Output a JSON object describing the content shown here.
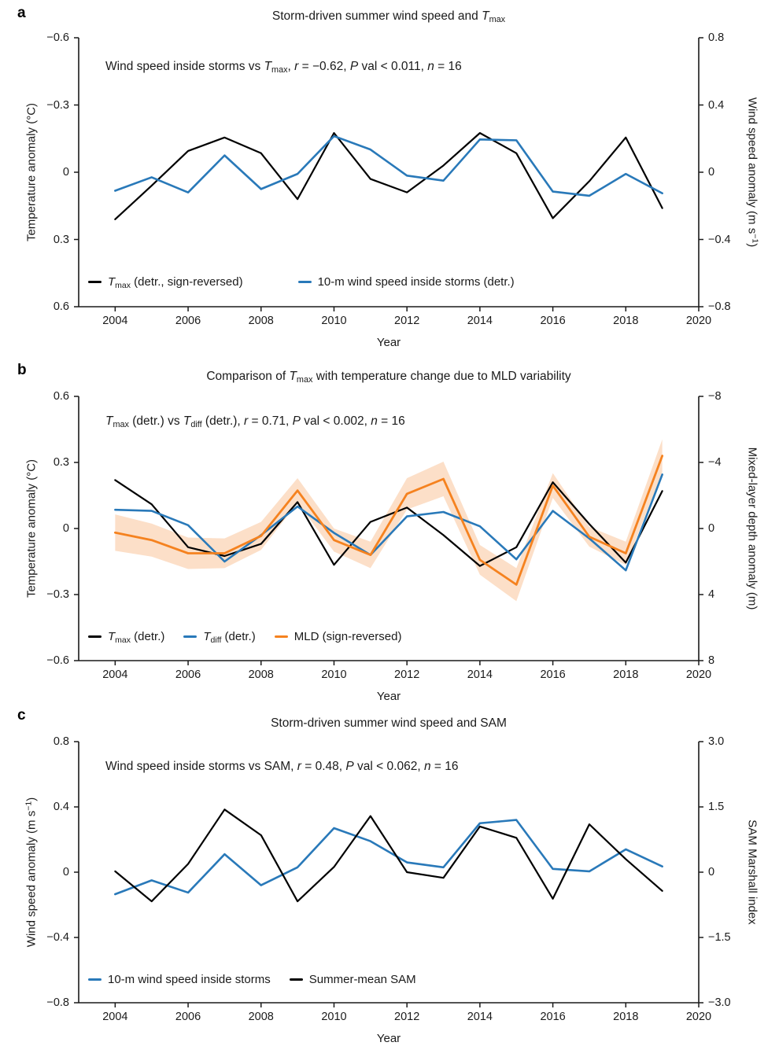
{
  "figure": {
    "background": "#ffffff",
    "axis_color": "#1a1a1a",
    "text_color": "#1a1a1a"
  },
  "chart_data": [
    {
      "letter": "a",
      "type": "line",
      "title": [
        {
          "t": "Storm-driven summer wind speed and "
        },
        {
          "t": "T",
          "i": 1
        },
        {
          "t": "max",
          "sub": 1
        }
      ],
      "annotation": [
        {
          "t": "Wind speed inside storms vs "
        },
        {
          "t": "T",
          "i": 1
        },
        {
          "t": "max",
          "sub": 1
        },
        {
          "t": ", "
        },
        {
          "t": "r",
          "i": 1
        },
        {
          "t": " = −0.62, "
        },
        {
          "t": "P",
          "i": 1
        },
        {
          "t": " val < 0.011, "
        },
        {
          "t": "n",
          "i": 1
        },
        {
          "t": " = 16"
        }
      ],
      "xlabel": "Year",
      "x_range": [
        2003,
        2020
      ],
      "x_ticks": [
        {
          "v": 2004,
          "label": "2004"
        },
        {
          "v": 2006,
          "label": "2006"
        },
        {
          "v": 2008,
          "label": "2008"
        },
        {
          "v": 2010,
          "label": "2010"
        },
        {
          "v": 2012,
          "label": "2012"
        },
        {
          "v": 2014,
          "label": "2014"
        },
        {
          "v": 2016,
          "label": "2016"
        },
        {
          "v": 2018,
          "label": "2018"
        },
        {
          "v": 2020,
          "label": "2020"
        }
      ],
      "left_axis": {
        "label": [
          {
            "t": "Temperature anomaly (°C)"
          }
        ],
        "range": [
          -0.6,
          0.6
        ],
        "inverted": true,
        "ticks": [
          {
            "v": -0.6,
            "label": "−0.6"
          },
          {
            "v": -0.3,
            "label": "−0.3"
          },
          {
            "v": 0,
            "label": "0"
          },
          {
            "v": 0.3,
            "label": "0.3"
          },
          {
            "v": 0.6,
            "label": "0.6"
          }
        ]
      },
      "right_axis": {
        "label": [
          {
            "t": "Wind speed anomaly (m s"
          },
          {
            "t": "−1",
            "sup": 1
          },
          {
            "t": ")"
          }
        ],
        "range": [
          -0.8,
          0.8
        ],
        "inverted": false,
        "ticks": [
          {
            "v": 0.8,
            "label": "0.8"
          },
          {
            "v": 0.4,
            "label": "0.4"
          },
          {
            "v": 0,
            "label": "0"
          },
          {
            "v": -0.4,
            "label": "−0.4"
          },
          {
            "v": -0.8,
            "label": "−0.8"
          }
        ]
      },
      "x": [
        2004,
        2005,
        2006,
        2007,
        2008,
        2009,
        2010,
        2011,
        2012,
        2013,
        2014,
        2015,
        2016,
        2017,
        2018,
        2019
      ],
      "series": [
        {
          "name": [
            {
              "t": "T",
              "i": 1
            },
            {
              "t": "max",
              "sub": 1
            },
            {
              "t": " (detr., sign-reversed)"
            }
          ],
          "color": "#000000",
          "axis": "left",
          "values": [
            0.21,
            0.06,
            -0.095,
            -0.155,
            -0.085,
            0.12,
            -0.175,
            0.03,
            0.09,
            -0.03,
            -0.175,
            -0.085,
            0.205,
            0.04,
            -0.155,
            0.16
          ]
        },
        {
          "name": [
            {
              "t": "10-m wind speed inside storms (detr.)"
            }
          ],
          "color": "#2979b9",
          "axis": "right",
          "values": [
            -0.11,
            -0.03,
            -0.12,
            0.1,
            -0.1,
            -0.01,
            0.215,
            0.135,
            -0.02,
            -0.05,
            0.195,
            0.19,
            -0.115,
            -0.14,
            -0.01,
            -0.125
          ]
        }
      ]
    },
    {
      "letter": "b",
      "type": "line",
      "title": [
        {
          "t": "Comparison of "
        },
        {
          "t": "T",
          "i": 1
        },
        {
          "t": "max",
          "sub": 1
        },
        {
          "t": " with temperature change due to MLD variability"
        }
      ],
      "annotation": [
        {
          "t": "T",
          "i": 1
        },
        {
          "t": "max",
          "sub": 1
        },
        {
          "t": " (detr.) vs "
        },
        {
          "t": "T",
          "i": 1
        },
        {
          "t": "diff",
          "sub": 1
        },
        {
          "t": " (detr.), "
        },
        {
          "t": "r",
          "i": 1
        },
        {
          "t": " = 0.71, "
        },
        {
          "t": "P",
          "i": 1
        },
        {
          "t": " val < 0.002, "
        },
        {
          "t": "n",
          "i": 1
        },
        {
          "t": " = 16"
        }
      ],
      "xlabel": "Year",
      "x_range": [
        2003,
        2020
      ],
      "x_ticks": [
        {
          "v": 2004,
          "label": "2004"
        },
        {
          "v": 2006,
          "label": "2006"
        },
        {
          "v": 2008,
          "label": "2008"
        },
        {
          "v": 2010,
          "label": "2010"
        },
        {
          "v": 2012,
          "label": "2012"
        },
        {
          "v": 2014,
          "label": "2014"
        },
        {
          "v": 2016,
          "label": "2016"
        },
        {
          "v": 2018,
          "label": "2018"
        },
        {
          "v": 2020,
          "label": "2020"
        }
      ],
      "left_axis": {
        "label": [
          {
            "t": "Temperature anomaly (°C)"
          }
        ],
        "range": [
          -0.6,
          0.6
        ],
        "inverted": false,
        "ticks": [
          {
            "v": 0.6,
            "label": "0.6"
          },
          {
            "v": 0.3,
            "label": "0.3"
          },
          {
            "v": 0,
            "label": "0"
          },
          {
            "v": -0.3,
            "label": "−0.3"
          },
          {
            "v": -0.6,
            "label": "−0.6"
          }
        ]
      },
      "right_axis": {
        "label": [
          {
            "t": "Mixed-layer depth anomaly (m)"
          }
        ],
        "range": [
          -8,
          8
        ],
        "inverted": true,
        "ticks": [
          {
            "v": -8,
            "label": "−8"
          },
          {
            "v": -4,
            "label": "−4"
          },
          {
            "v": 0,
            "label": "0"
          },
          {
            "v": 4,
            "label": "4"
          },
          {
            "v": 8,
            "label": "8"
          }
        ]
      },
      "x": [
        2004,
        2005,
        2006,
        2007,
        2008,
        2009,
        2010,
        2011,
        2012,
        2013,
        2014,
        2015,
        2016,
        2017,
        2018,
        2019
      ],
      "series": [
        {
          "name": [
            {
              "t": "T",
              "i": 1
            },
            {
              "t": "max",
              "sub": 1
            },
            {
              "t": " (detr.)"
            }
          ],
          "color": "#000000",
          "axis": "left",
          "values": [
            0.22,
            0.11,
            -0.085,
            -0.125,
            -0.07,
            0.12,
            -0.165,
            0.03,
            0.095,
            -0.03,
            -0.17,
            -0.085,
            0.21,
            0.02,
            -0.155,
            0.17
          ]
        },
        {
          "name": [
            {
              "t": "T",
              "i": 1
            },
            {
              "t": "diff",
              "sub": 1
            },
            {
              "t": " (detr.)"
            }
          ],
          "color": "#2979b9",
          "axis": "left",
          "values": [
            0.085,
            0.08,
            0.015,
            -0.15,
            -0.03,
            0.1,
            -0.02,
            -0.12,
            0.055,
            0.075,
            0.01,
            -0.14,
            0.08,
            -0.045,
            -0.19,
            0.245
          ]
        },
        {
          "name": [
            {
              "t": "MLD (sign-reversed)"
            }
          ],
          "color": "#f5821f",
          "axis": "right",
          "values": [
            0.25,
            0.7,
            1.5,
            1.5,
            0.45,
            -2.3,
            0.7,
            1.6,
            -2.1,
            -3.0,
            1.9,
            3.4,
            -2.6,
            0.5,
            1.5,
            -4.4
          ],
          "band_color": "#fcdfc8",
          "band_upper": [
            -0.85,
            -0.3,
            0.55,
            0.6,
            -0.4,
            -3.05,
            0.0,
            0.8,
            -3.05,
            -4.05,
            1.0,
            2.4,
            -3.35,
            -0.1,
            0.8,
            -5.4
          ],
          "band_lower": [
            1.35,
            1.7,
            2.45,
            2.4,
            1.3,
            -1.55,
            1.4,
            2.4,
            -1.15,
            -1.95,
            2.8,
            4.4,
            -1.85,
            1.1,
            2.2,
            -3.4
          ]
        }
      ]
    },
    {
      "letter": "c",
      "type": "line",
      "title": [
        {
          "t": "Storm-driven summer wind speed and SAM"
        }
      ],
      "annotation": [
        {
          "t": "Wind speed inside storms vs SAM, "
        },
        {
          "t": "r",
          "i": 1
        },
        {
          "t": " = 0.48, "
        },
        {
          "t": "P",
          "i": 1
        },
        {
          "t": " val < 0.062, "
        },
        {
          "t": "n",
          "i": 1
        },
        {
          "t": " = 16"
        }
      ],
      "xlabel": "Year",
      "x_range": [
        2003,
        2020
      ],
      "x_ticks": [
        {
          "v": 2004,
          "label": "2004"
        },
        {
          "v": 2006,
          "label": "2006"
        },
        {
          "v": 2008,
          "label": "2008"
        },
        {
          "v": 2010,
          "label": "2010"
        },
        {
          "v": 2012,
          "label": "2012"
        },
        {
          "v": 2014,
          "label": "2014"
        },
        {
          "v": 2016,
          "label": "2016"
        },
        {
          "v": 2018,
          "label": "2018"
        },
        {
          "v": 2020,
          "label": "2020"
        }
      ],
      "left_axis": {
        "label": [
          {
            "t": "Wind speed anomaly (m s"
          },
          {
            "t": "−1",
            "sup": 1
          },
          {
            "t": ")"
          }
        ],
        "range": [
          -0.8,
          0.8
        ],
        "inverted": false,
        "ticks": [
          {
            "v": 0.8,
            "label": "0.8"
          },
          {
            "v": 0.4,
            "label": "0.4"
          },
          {
            "v": 0,
            "label": "0"
          },
          {
            "v": -0.4,
            "label": "−0.4"
          },
          {
            "v": -0.8,
            "label": "−0.8"
          }
        ]
      },
      "right_axis": {
        "label": [
          {
            "t": "SAM Marshall index"
          }
        ],
        "range": [
          -3.0,
          3.0
        ],
        "inverted": false,
        "ticks": [
          {
            "v": 3.0,
            "label": "3.0"
          },
          {
            "v": 1.5,
            "label": "1.5"
          },
          {
            "v": 0,
            "label": "0"
          },
          {
            "v": -1.5,
            "label": "−1.5"
          },
          {
            "v": -3.0,
            "label": "−3.0"
          }
        ]
      },
      "x": [
        2004,
        2005,
        2006,
        2007,
        2008,
        2009,
        2010,
        2011,
        2012,
        2013,
        2014,
        2015,
        2016,
        2017,
        2018,
        2019
      ],
      "series": [
        {
          "name": [
            {
              "t": "10-m wind speed inside storms"
            }
          ],
          "color": "#2979b9",
          "axis": "left",
          "values": [
            -0.135,
            -0.05,
            -0.125,
            0.11,
            -0.08,
            0.03,
            0.27,
            0.19,
            0.06,
            0.03,
            0.3,
            0.32,
            0.02,
            0.005,
            0.14,
            0.035
          ]
        },
        {
          "name": [
            {
              "t": "Summer-mean SAM"
            }
          ],
          "color": "#000000",
          "axis": "right",
          "values": [
            0.02,
            -0.67,
            0.19,
            1.44,
            0.85,
            -0.67,
            0.12,
            1.29,
            0.0,
            -0.13,
            1.05,
            0.79,
            -0.61,
            1.1,
            0.3,
            -0.43
          ]
        }
      ]
    }
  ]
}
